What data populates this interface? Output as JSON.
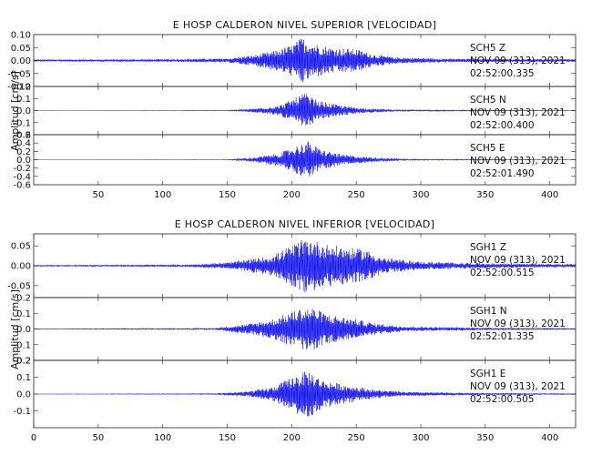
{
  "chart_data": [
    {
      "type": "line",
      "title": "E HOSP CALDERON NIVEL SUPERIOR [VELOCIDAD]",
      "ylabel": "Amplitud [cm/s]",
      "xlim": [
        0,
        420
      ],
      "x_ticks": [
        "50",
        "100",
        "150",
        "200",
        "250",
        "300",
        "350",
        "400"
      ],
      "series": [
        {
          "name": "SCH5   Z",
          "date": "NOV 09 (313), 2021",
          "time": "02:52:00.335",
          "ylim": [
            -0.1,
            0.1
          ],
          "y_ticks": [
            "0.10",
            "0.05",
            "0.00",
            "-0.05",
            "-0.10"
          ],
          "y_tick_values": [
            0.1,
            0.05,
            0,
            -0.05,
            -0.1
          ],
          "envelope": [
            [
              0,
              0.004
            ],
            [
              100,
              0.005
            ],
            [
              150,
              0.008
            ],
            [
              170,
              0.02
            ],
            [
              185,
              0.035
            ],
            [
              200,
              0.06
            ],
            [
              208,
              0.09
            ],
            [
              215,
              0.07
            ],
            [
              230,
              0.05
            ],
            [
              250,
              0.045
            ],
            [
              262,
              0.025
            ],
            [
              280,
              0.012
            ],
            [
              320,
              0.007
            ],
            [
              420,
              0.005
            ]
          ]
        },
        {
          "name": "SCH5   N",
          "date": "NOV 09 (313), 2021",
          "time": "02:52:00.400",
          "ylim": [
            -0.2,
            0.2
          ],
          "y_ticks": [
            "0.2",
            "0.1",
            "0.0",
            "-0.1",
            "-0.2"
          ],
          "y_tick_values": [
            0.2,
            0.1,
            0,
            -0.1,
            -0.2
          ],
          "envelope": [
            [
              0,
              0.002
            ],
            [
              150,
              0.004
            ],
            [
              170,
              0.015
            ],
            [
              190,
              0.04
            ],
            [
              202,
              0.1
            ],
            [
              210,
              0.15
            ],
            [
              220,
              0.08
            ],
            [
              240,
              0.04
            ],
            [
              255,
              0.02
            ],
            [
              280,
              0.008
            ],
            [
              420,
              0.003
            ]
          ]
        },
        {
          "name": "SCH5   E",
          "date": "NOV 09 (313), 2021",
          "time": "02:52:01.490",
          "ylim": [
            -0.6,
            0.6
          ],
          "y_ticks": [
            "0.6",
            "0.4",
            "0.2",
            "0.0",
            "-0.2",
            "-0.4",
            "-0.6"
          ],
          "y_tick_values": [
            0.6,
            0.4,
            0.2,
            0,
            -0.2,
            -0.4,
            -0.6
          ],
          "envelope": [
            [
              0,
              0.005
            ],
            [
              150,
              0.01
            ],
            [
              170,
              0.05
            ],
            [
              190,
              0.15
            ],
            [
              205,
              0.35
            ],
            [
              212,
              0.45
            ],
            [
              222,
              0.25
            ],
            [
              240,
              0.12
            ],
            [
              260,
              0.06
            ],
            [
              290,
              0.02
            ],
            [
              420,
              0.008
            ]
          ]
        }
      ]
    },
    {
      "type": "line",
      "title": "E HOSP CALDERON NIVEL INFERIOR [VELOCIDAD]",
      "ylabel": "Amplitud [cm/s]",
      "xlim": [
        0,
        420
      ],
      "x_ticks": [
        "0",
        "50",
        "100",
        "150",
        "200",
        "250",
        "300",
        "350",
        "400"
      ],
      "series": [
        {
          "name": "SGH1   Z",
          "date": "NOV 09 (313), 2021",
          "time": "02:52:00.515",
          "ylim": [
            -0.08,
            0.08
          ],
          "y_ticks": [
            "0.05",
            "0.00",
            "-0.05"
          ],
          "y_tick_values": [
            0.05,
            0,
            -0.05
          ],
          "envelope": [
            [
              0,
              0.002
            ],
            [
              120,
              0.003
            ],
            [
              150,
              0.008
            ],
            [
              165,
              0.015
            ],
            [
              185,
              0.025
            ],
            [
              205,
              0.06
            ],
            [
              212,
              0.07
            ],
            [
              225,
              0.055
            ],
            [
              245,
              0.045
            ],
            [
              258,
              0.04
            ],
            [
              270,
              0.02
            ],
            [
              300,
              0.01
            ],
            [
              350,
              0.006
            ],
            [
              420,
              0.004
            ]
          ]
        },
        {
          "name": "SGH1   N",
          "date": "NOV 09 (313), 2021",
          "time": "02:52:01.335",
          "ylim": [
            -0.2,
            0.2
          ],
          "y_ticks": [
            "0.2",
            "0.1",
            "0.0",
            "-0.1",
            "-0.2"
          ],
          "y_tick_values": [
            0.2,
            0.1,
            0,
            -0.1,
            -0.2
          ],
          "envelope": [
            [
              0,
              0.003
            ],
            [
              140,
              0.006
            ],
            [
              165,
              0.03
            ],
            [
              185,
              0.06
            ],
            [
              205,
              0.13
            ],
            [
              215,
              0.14
            ],
            [
              230,
              0.09
            ],
            [
              250,
              0.06
            ],
            [
              265,
              0.035
            ],
            [
              290,
              0.015
            ],
            [
              350,
              0.008
            ],
            [
              420,
              0.005
            ]
          ]
        },
        {
          "name": "SGH1   E",
          "date": "NOV 09 (313), 2021",
          "time": "02:52:00.505",
          "ylim": [
            -0.2,
            0.2
          ],
          "y_ticks": [
            "0.2",
            "0.1",
            "0.0",
            "-0.1"
          ],
          "y_tick_values": [
            0.2,
            0.1,
            0,
            -0.1
          ],
          "envelope": [
            [
              0,
              0.002
            ],
            [
              140,
              0.004
            ],
            [
              165,
              0.015
            ],
            [
              185,
              0.04
            ],
            [
              205,
              0.12
            ],
            [
              213,
              0.14
            ],
            [
              225,
              0.08
            ],
            [
              245,
              0.05
            ],
            [
              265,
              0.025
            ],
            [
              290,
              0.012
            ],
            [
              350,
              0.006
            ],
            [
              420,
              0.004
            ]
          ]
        }
      ]
    }
  ]
}
